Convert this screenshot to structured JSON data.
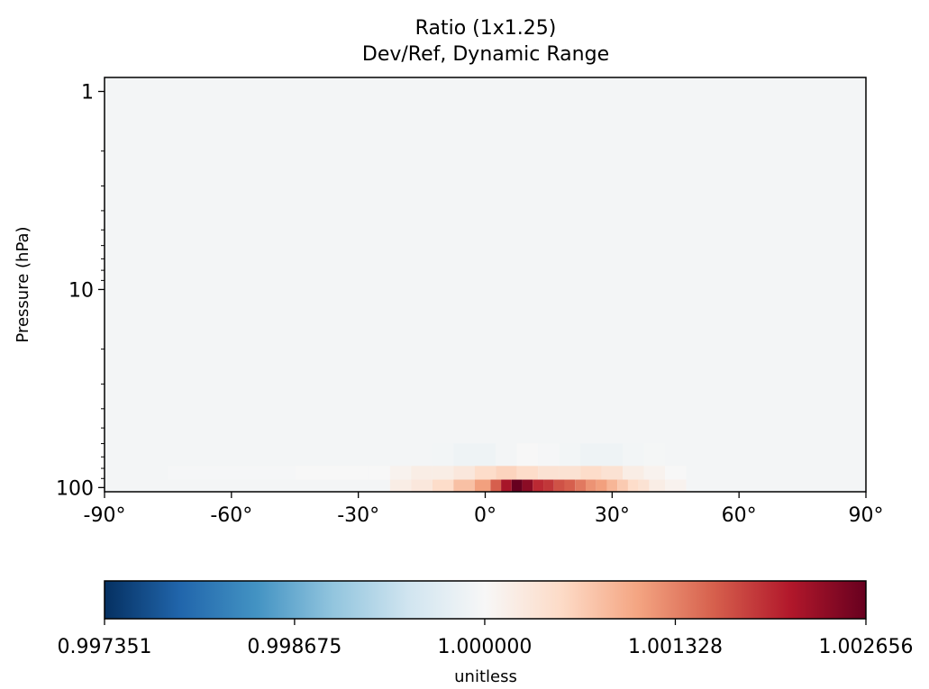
{
  "chart_data": {
    "type": "heatmap",
    "title": "Ratio (1x1.25)",
    "subtitle": "Dev/Ref, Dynamic Range",
    "xlabel": "",
    "ylabel": "Pressure (hPa)",
    "xlim": [
      -90,
      90
    ],
    "ylim": [
      105,
      0.85
    ],
    "yscale": "log",
    "x_ticks": [
      -90,
      -60,
      -30,
      0,
      30,
      60,
      90
    ],
    "x_tick_labels": [
      "-90°",
      "-60°",
      "-30°",
      "0°",
      "30°",
      "60°",
      "90°"
    ],
    "y_ticks": [
      1,
      10,
      100
    ],
    "y_tick_labels": [
      "1",
      "10",
      "100"
    ],
    "colormap": "RdBu_r",
    "colorbar": {
      "label": "unitless",
      "vmin": 0.997351,
      "vmax": 1.002656,
      "ticks": [
        0.997351,
        0.998675,
        1.0,
        1.001328,
        1.002656
      ],
      "tick_labels": [
        "0.997351",
        "0.998675",
        "1.000000",
        "1.001328",
        "1.002656"
      ],
      "colors": [
        "#053061",
        "#2166ac",
        "#4393c3",
        "#92c5de",
        "#d1e5f0",
        "#f7f7f7",
        "#fddbc7",
        "#f4a582",
        "#d6604d",
        "#b2182b",
        "#67001f"
      ]
    },
    "background_value": 0.99995,
    "rows": [
      {
        "pressure": 72,
        "lat": [
          -10,
          -5,
          0,
          5,
          10,
          15,
          20,
          25,
          30,
          35,
          40
        ],
        "values": [
          0.99993,
          0.99988,
          0.99988,
          0.99995,
          1.0,
          0.99997,
          0.99993,
          0.99988,
          0.99988,
          0.99993,
          0.99996
        ]
      },
      {
        "pressure": 84,
        "lat": [
          -60,
          -30,
          -25,
          -20,
          -15,
          -10,
          -5,
          0,
          5,
          10,
          15,
          20,
          25,
          30,
          35,
          40,
          45
        ],
        "values": [
          0.99997,
          1.0,
          1.0,
          1.0001,
          1.0002,
          1.0002,
          1.0003,
          1.0005,
          1.0006,
          1.0005,
          1.0004,
          1.0004,
          1.0005,
          1.0004,
          1.0002,
          1.0001,
          1.0
        ]
      },
      {
        "pressure": 99,
        "lat": [
          -20,
          -15,
          -10,
          -5,
          0,
          2.5,
          5,
          7.5,
          10,
          12.5,
          15,
          17.5,
          20,
          22.5,
          25,
          27.5,
          30,
          32.5,
          35,
          37.5,
          40,
          45
        ],
        "values": [
          1.0002,
          1.0003,
          1.0005,
          1.0008,
          1.0011,
          1.0016,
          1.0022,
          1.00266,
          1.0024,
          1.002,
          1.0019,
          1.0017,
          1.0016,
          1.0014,
          1.0012,
          1.0011,
          1.0009,
          1.0007,
          1.0005,
          1.0004,
          1.0002,
          1.0001
        ]
      }
    ]
  }
}
